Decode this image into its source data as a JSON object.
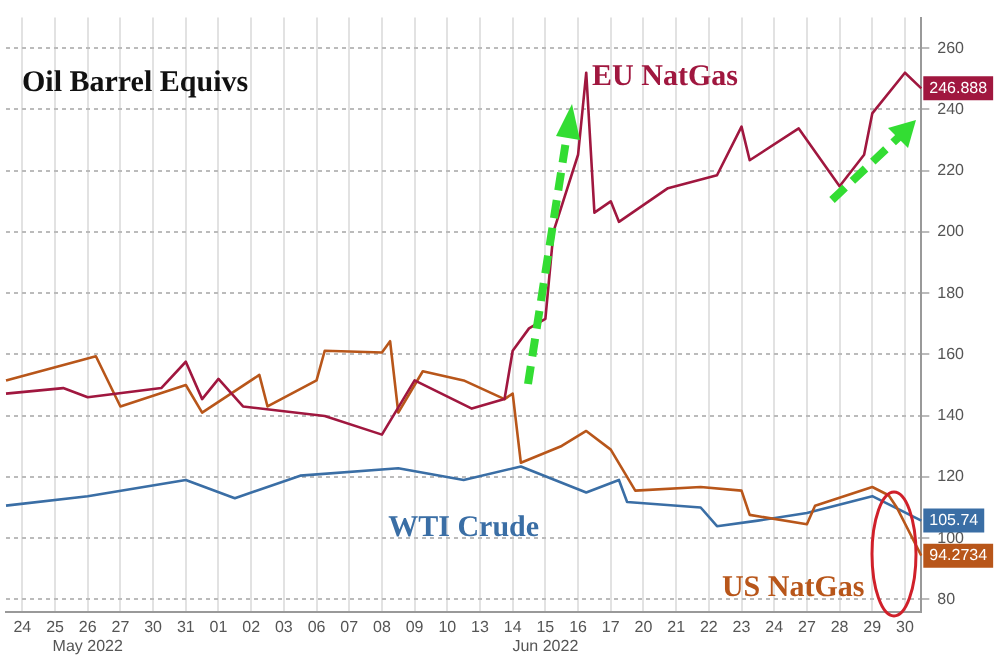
{
  "chart_data": {
    "type": "line",
    "title": "Oil Barrel Equivs",
    "categories": [
      null,
      null,
      "24",
      null,
      null,
      null,
      "25",
      null,
      null,
      null,
      "26\nMay 2022",
      null,
      null,
      null,
      "27",
      null,
      null,
      null,
      "30",
      null,
      null,
      null,
      "31",
      null,
      null,
      null,
      "01",
      null,
      null,
      null,
      "02",
      null,
      null,
      null,
      "03",
      null,
      null,
      null,
      "06",
      null,
      null,
      null,
      "07",
      null,
      null,
      null,
      "08",
      null,
      null,
      null,
      "09",
      null,
      null,
      null,
      "10",
      null,
      null,
      null,
      "13",
      null,
      null,
      null,
      "14",
      null,
      null,
      null,
      "15\nJun 2022",
      null,
      null,
      null,
      "16",
      null,
      null,
      null,
      "17",
      null,
      null,
      null,
      "20",
      null,
      null,
      null,
      "21",
      null,
      null,
      null,
      "22",
      null,
      null,
      null,
      "23",
      null,
      null,
      null,
      "24",
      null,
      null,
      null,
      "27",
      null,
      null,
      null,
      "28",
      null,
      null,
      null,
      "29",
      null,
      null,
      null,
      "30",
      null,
      null
    ],
    "series": [
      {
        "name": "EU NatGas",
        "color": "#a0173f",
        "values": [
          147.2,
          null,
          null,
          null,
          null,
          null,
          null,
          149,
          null,
          null,
          146,
          null,
          null,
          null,
          null,
          null,
          null,
          null,
          null,
          149,
          null,
          null,
          157.6,
          null,
          145.4,
          null,
          152,
          null,
          null,
          143,
          null,
          null,
          null,
          null,
          null,
          null,
          null,
          null,
          null,
          139.9,
          null,
          null,
          null,
          null,
          null,
          null,
          133.8,
          null,
          null,
          null,
          151.5,
          null,
          null,
          null,
          null,
          null,
          null,
          142.3,
          null,
          null,
          null,
          145.4,
          161.2,
          null,
          168.5,
          null,
          171.6,
          200.2,
          null,
          null,
          225.2,
          252,
          206.3,
          null,
          210,
          203.3,
          null,
          null,
          null,
          null,
          null,
          214.3,
          null,
          null,
          null,
          null,
          null,
          218.5,
          null,
          null,
          234.4,
          223.4,
          null,
          null,
          null,
          null,
          null,
          233.8,
          null,
          null,
          null,
          null,
          214.9,
          null,
          null,
          225.2,
          238.7,
          null,
          null,
          null,
          252,
          null,
          246.888
        ],
        "value_labels": [
          null,
          null,
          null,
          null,
          null,
          null,
          null,
          null,
          null,
          null,
          null,
          null,
          null,
          null,
          null,
          null,
          null,
          null,
          null,
          null,
          null,
          null,
          null,
          null,
          null,
          null,
          null,
          null,
          null,
          null,
          null,
          null,
          null,
          null,
          null,
          null,
          null,
          null,
          null,
          null,
          null,
          null,
          null,
          null,
          null,
          null,
          null,
          null,
          null,
          null,
          null,
          null,
          null,
          null,
          null,
          null,
          null,
          null,
          null,
          null,
          null,
          null,
          null,
          null,
          null,
          null,
          null,
          null,
          null,
          null,
          null,
          null,
          null,
          null,
          null,
          null,
          null,
          null,
          null,
          null,
          null,
          null,
          null,
          null,
          null,
          null,
          null,
          null,
          null,
          null,
          null,
          null,
          null,
          null,
          null,
          null,
          null,
          null,
          null,
          null,
          null,
          null,
          null,
          null,
          null,
          null,
          null,
          null,
          null,
          null,
          null,
          null,
          "246.888"
        ]
      },
      {
        "name": "US NatGas",
        "color": "#b8561a",
        "values": [
          151.5,
          null,
          null,
          null,
          null,
          null,
          null,
          null,
          null,
          null,
          null,
          159.4,
          null,
          null,
          143,
          null,
          null,
          null,
          null,
          null,
          null,
          null,
          150,
          null,
          141,
          null,
          null,
          null,
          null,
          null,
          null,
          153.3,
          143,
          null,
          null,
          null,
          null,
          null,
          151.5,
          161.2,
          null,
          null,
          null,
          null,
          null,
          null,
          160.6,
          164.3,
          141,
          null,
          null,
          154.5,
          null,
          null,
          null,
          null,
          151.5,
          null,
          null,
          null,
          null,
          145.4,
          147.2,
          124.6,
          null,
          null,
          null,
          null,
          130.1,
          null,
          null,
          135,
          null,
          null,
          128.9,
          null,
          null,
          115.5,
          null,
          null,
          null,
          null,
          null,
          null,
          null,
          116.7,
          null,
          null,
          null,
          null,
          115.5,
          107.6,
          null,
          null,
          null,
          null,
          null,
          null,
          104.5,
          110.6,
          null,
          null,
          null,
          null,
          null,
          null,
          116.7,
          null,
          114,
          110,
          null,
          null,
          94.2734
        ],
        "value_labels": [
          null,
          null,
          null,
          null,
          null,
          null,
          null,
          null,
          null,
          null,
          null,
          null,
          null,
          null,
          null,
          null,
          null,
          null,
          null,
          null,
          null,
          null,
          null,
          null,
          null,
          null,
          null,
          null,
          null,
          null,
          null,
          null,
          null,
          null,
          null,
          null,
          null,
          null,
          null,
          null,
          null,
          null,
          null,
          null,
          null,
          null,
          null,
          null,
          null,
          null,
          null,
          null,
          null,
          null,
          null,
          null,
          null,
          null,
          null,
          null,
          null,
          null,
          null,
          null,
          null,
          null,
          null,
          null,
          null,
          null,
          null,
          null,
          null,
          null,
          null,
          null,
          null,
          null,
          null,
          null,
          null,
          null,
          null,
          null,
          null,
          null,
          null,
          null,
          null,
          null,
          null,
          null,
          null,
          null,
          null,
          null,
          null,
          null,
          null,
          null,
          null,
          null,
          null,
          null,
          null,
          null,
          null,
          null,
          null,
          null,
          null,
          null,
          "94.2734"
        ]
      },
      {
        "name": "WTI Crude",
        "color": "#3a6ea5",
        "values": [
          110.6,
          null,
          null,
          null,
          null,
          null,
          null,
          null,
          null,
          null,
          113.7,
          null,
          null,
          null,
          null,
          null,
          null,
          null,
          null,
          null,
          null,
          null,
          119,
          null,
          null,
          null,
          null,
          null,
          113,
          null,
          null,
          null,
          null,
          null,
          null,
          null,
          120.4,
          null,
          null,
          null,
          null,
          null,
          null,
          null,
          null,
          null,
          null,
          null,
          122.8,
          null,
          null,
          null,
          null,
          null,
          null,
          null,
          119,
          null,
          null,
          null,
          null,
          null,
          null,
          123.4,
          null,
          null,
          null,
          null,
          null,
          null,
          null,
          114.9,
          null,
          null,
          null,
          119,
          111.8,
          null,
          null,
          null,
          null,
          null,
          null,
          null,
          null,
          110,
          null,
          103.9,
          null,
          null,
          null,
          null,
          105.7,
          null,
          null,
          null,
          null,
          null,
          108.2,
          null,
          null,
          null,
          null,
          null,
          null,
          null,
          113.7,
          null,
          null,
          null,
          null,
          null,
          105.74
        ],
        "value_labels": [
          null,
          null,
          null,
          null,
          null,
          null,
          null,
          null,
          null,
          null,
          null,
          null,
          null,
          null,
          null,
          null,
          null,
          null,
          null,
          null,
          null,
          null,
          null,
          null,
          null,
          null,
          null,
          null,
          null,
          null,
          null,
          null,
          null,
          null,
          null,
          null,
          null,
          null,
          null,
          null,
          null,
          null,
          null,
          null,
          null,
          null,
          null,
          null,
          null,
          null,
          null,
          null,
          null,
          null,
          null,
          null,
          null,
          null,
          null,
          null,
          null,
          null,
          null,
          null,
          null,
          null,
          null,
          null,
          null,
          null,
          null,
          null,
          null,
          null,
          null,
          null,
          null,
          null,
          null,
          null,
          null,
          null,
          null,
          null,
          null,
          null,
          null,
          null,
          null,
          null,
          null,
          null,
          null,
          null,
          null,
          null,
          null,
          null,
          null,
          null,
          null,
          null,
          null,
          null,
          null,
          null,
          null,
          null,
          null,
          null,
          null,
          null,
          "105.74"
        ]
      }
    ],
    "ylim": [
      76,
      270
    ],
    "yticks": [
      80,
      100,
      120,
      140,
      160,
      180,
      200,
      220,
      240,
      260
    ],
    "grid": true,
    "marker": "none",
    "line_style": "solid",
    "legend": false
  }
}
